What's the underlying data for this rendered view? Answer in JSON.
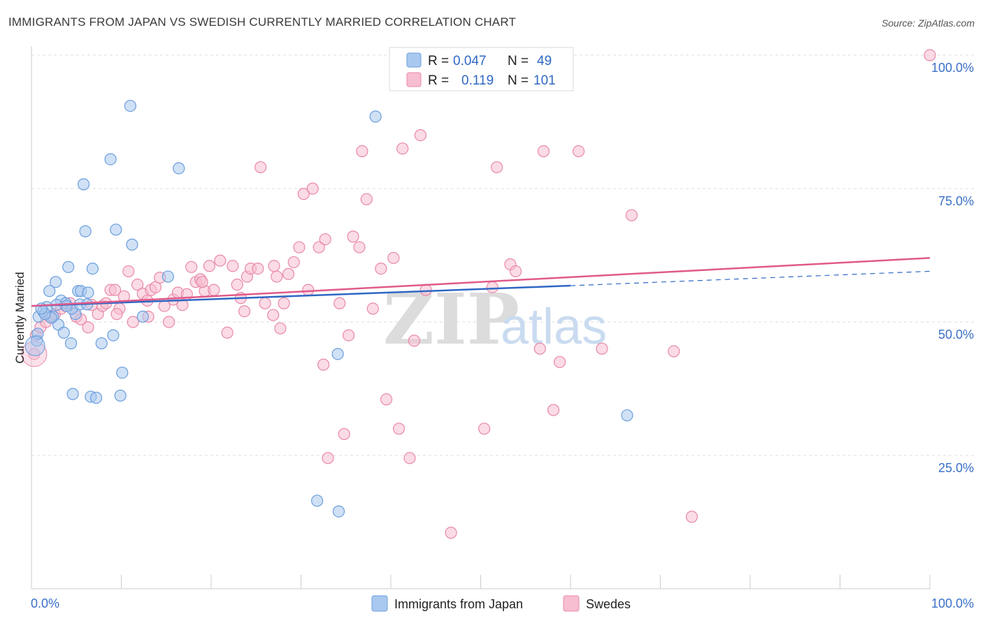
{
  "header": {
    "title": "IMMIGRANTS FROM JAPAN VS SWEDISH CURRENTLY MARRIED CORRELATION CHART",
    "source": "Source: ZipAtlas.com"
  },
  "legend": {
    "r_label": "R =",
    "n_label": "N =",
    "series": [
      {
        "r": "0.047",
        "n": "49"
      },
      {
        "r": "0.119",
        "n": "101"
      }
    ]
  },
  "watermark": {
    "zip": "ZIP",
    "atlas": "atlas"
  },
  "colors": {
    "japan_fill": "#a9c8ef",
    "japan_stroke": "#6a9edc",
    "japan_line": "#2f67c4",
    "swedes_fill": "#f7bdd0",
    "swedes_stroke": "#e889a8",
    "swedes_line": "#e05a8a"
  },
  "chart_data": {
    "type": "scatter",
    "title": "IMMIGRANTS FROM JAPAN VS SWEDISH CURRENTLY MARRIED CORRELATION CHART",
    "xlabel": "",
    "ylabel": "Currently Married",
    "xlim": [
      0,
      100
    ],
    "ylim": [
      0,
      100
    ],
    "x_ticks": [
      "0.0%",
      "100.0%"
    ],
    "y_ticks": [
      "25.0%",
      "50.0%",
      "75.0%",
      "100.0%"
    ],
    "grid": true,
    "legend_position": "top-center",
    "series": [
      {
        "name": "Immigrants from Japan",
        "r": 0.047,
        "n": 49,
        "trend": {
          "x": [
            0,
            60
          ],
          "y": [
            53.0,
            56.8
          ],
          "dashed_to": [
            100,
            59.5
          ]
        },
        "points": [
          [
            0.6,
            46.5
          ],
          [
            0.8,
            51
          ],
          [
            1.3,
            52
          ],
          [
            1.7,
            52.8
          ],
          [
            2,
            55.8
          ],
          [
            2.4,
            51
          ],
          [
            2.7,
            57.5
          ],
          [
            3,
            49.5
          ],
          [
            3.3,
            54
          ],
          [
            3.6,
            48
          ],
          [
            3.8,
            53.5
          ],
          [
            4.1,
            60.3
          ],
          [
            4.4,
            46
          ],
          [
            4.6,
            36.5
          ],
          [
            4.9,
            51.5
          ],
          [
            5.2,
            55.8
          ],
          [
            5.5,
            55.8
          ],
          [
            5.8,
            75.8
          ],
          [
            6,
            67
          ],
          [
            6.3,
            55.5
          ],
          [
            6.6,
            36
          ],
          [
            6.8,
            60
          ],
          [
            7.2,
            35.8
          ],
          [
            7.8,
            46
          ],
          [
            8.8,
            80.5
          ],
          [
            9.1,
            47.5
          ],
          [
            9.4,
            67.3
          ],
          [
            9.9,
            36.2
          ],
          [
            10.1,
            40.5
          ],
          [
            11,
            90.5
          ],
          [
            11.2,
            64.5
          ],
          [
            12.4,
            51
          ],
          [
            15.2,
            58.5
          ],
          [
            16.4,
            78.8
          ],
          [
            34.2,
            14.5
          ],
          [
            31.8,
            16.5
          ],
          [
            34.1,
            44
          ],
          [
            38.3,
            88.5
          ],
          [
            41.8,
            100
          ],
          [
            66.3,
            32.5
          ],
          [
            4.5,
            52.5
          ],
          [
            2.2,
            50.8
          ],
          [
            1.5,
            51.5
          ],
          [
            3.9,
            53
          ],
          [
            5.4,
            53.3
          ],
          [
            0.7,
            47.8
          ],
          [
            6.2,
            53.3
          ],
          [
            2.8,
            53.2
          ],
          [
            1.1,
            52.5
          ]
        ]
      },
      {
        "name": "Swedes",
        "r": 0.119,
        "n": 101,
        "trend": {
          "x": [
            0,
            100
          ],
          "y": [
            53.0,
            62.0
          ]
        },
        "points": [
          [
            0.3,
            44
          ],
          [
            0.5,
            47.5
          ],
          [
            1,
            49
          ],
          [
            1.6,
            50
          ],
          [
            2,
            51
          ],
          [
            2.6,
            51.5
          ],
          [
            3.3,
            52.5
          ],
          [
            3.8,
            53
          ],
          [
            4.3,
            53.5
          ],
          [
            5,
            51
          ],
          [
            5.5,
            50.5
          ],
          [
            6.3,
            49
          ],
          [
            6.7,
            53.2
          ],
          [
            7.4,
            51.5
          ],
          [
            7.9,
            53
          ],
          [
            8.3,
            53.5
          ],
          [
            8.8,
            56
          ],
          [
            9.3,
            56
          ],
          [
            9.8,
            52.5
          ],
          [
            10.3,
            54.8
          ],
          [
            10.8,
            59.5
          ],
          [
            11.3,
            50
          ],
          [
            11.8,
            57
          ],
          [
            12.4,
            55.3
          ],
          [
            12.9,
            54
          ],
          [
            13.3,
            56
          ],
          [
            13.8,
            56.5
          ],
          [
            14.3,
            58.3
          ],
          [
            14.8,
            53
          ],
          [
            15.3,
            50
          ],
          [
            15.8,
            54.2
          ],
          [
            16.3,
            55.5
          ],
          [
            16.8,
            53.2
          ],
          [
            17.3,
            55.2
          ],
          [
            17.8,
            60.3
          ],
          [
            18.3,
            57.5
          ],
          [
            18.8,
            58
          ],
          [
            19.3,
            55.8
          ],
          [
            19.8,
            60.5
          ],
          [
            20.3,
            56
          ],
          [
            21,
            61.5
          ],
          [
            21.8,
            48
          ],
          [
            22.4,
            60.5
          ],
          [
            22.9,
            57
          ],
          [
            23.3,
            54.5
          ],
          [
            24,
            58.5
          ],
          [
            24.4,
            60
          ],
          [
            25.2,
            60
          ],
          [
            25.5,
            79
          ],
          [
            26,
            53.5
          ],
          [
            26.9,
            51.3
          ],
          [
            27.3,
            58.5
          ],
          [
            27.7,
            48.8
          ],
          [
            28.1,
            53.5
          ],
          [
            28.6,
            59
          ],
          [
            29.2,
            61.2
          ],
          [
            29.8,
            64
          ],
          [
            30.3,
            74
          ],
          [
            30.8,
            56
          ],
          [
            31.3,
            75
          ],
          [
            32,
            64
          ],
          [
            32.5,
            42
          ],
          [
            32.7,
            65.5
          ],
          [
            33,
            24.5
          ],
          [
            34.3,
            53.5
          ],
          [
            34.8,
            29
          ],
          [
            35.3,
            47.5
          ],
          [
            35.8,
            66
          ],
          [
            36.5,
            64
          ],
          [
            36.8,
            82
          ],
          [
            37.3,
            73
          ],
          [
            38,
            52.5
          ],
          [
            38.9,
            60
          ],
          [
            39.5,
            35.5
          ],
          [
            40.3,
            62
          ],
          [
            40.9,
            30
          ],
          [
            41.3,
            82.5
          ],
          [
            42.1,
            24.5
          ],
          [
            42.6,
            46.5
          ],
          [
            43.3,
            85
          ],
          [
            43.9,
            56
          ],
          [
            44.6,
            100
          ],
          [
            46.7,
            10.5
          ],
          [
            50.4,
            30
          ],
          [
            51.3,
            56.5
          ],
          [
            51.8,
            79
          ],
          [
            53.3,
            60.8
          ],
          [
            53.9,
            59.5
          ],
          [
            56.6,
            45
          ],
          [
            57,
            82
          ],
          [
            58.1,
            33.5
          ],
          [
            58.8,
            42.5
          ],
          [
            60.9,
            82
          ],
          [
            63.5,
            45
          ],
          [
            66.8,
            70
          ],
          [
            71.5,
            44.5
          ],
          [
            73.5,
            13.5
          ],
          [
            100,
            100
          ],
          [
            9.5,
            51.5
          ],
          [
            13,
            51
          ],
          [
            19,
            57.5
          ],
          [
            23.7,
            52
          ],
          [
            27,
            60.5
          ]
        ]
      }
    ]
  },
  "bottom_legend": [
    "Immigrants from Japan",
    "Swedes"
  ]
}
